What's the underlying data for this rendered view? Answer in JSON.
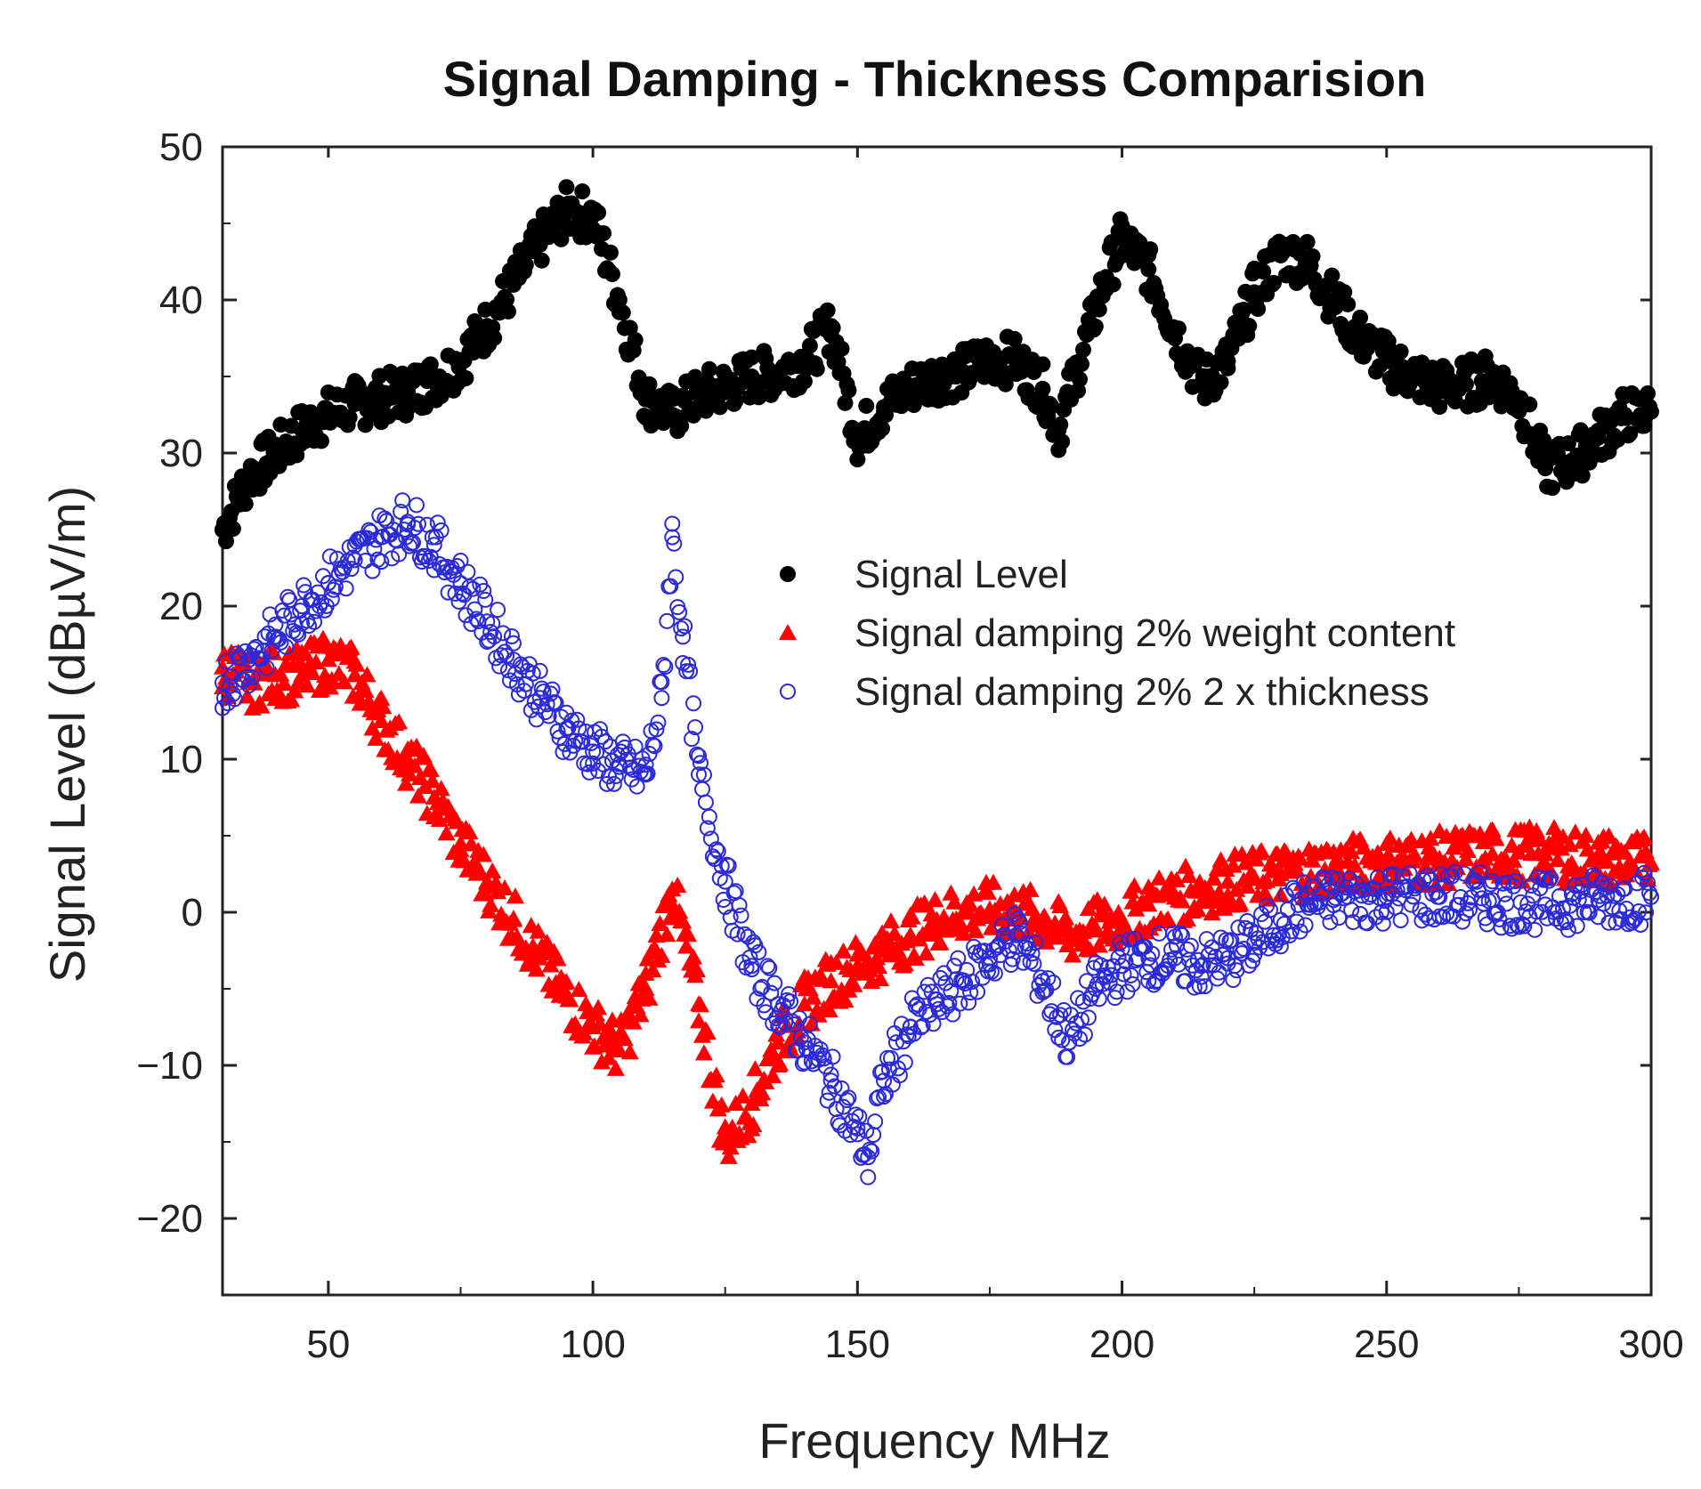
{
  "chart_data": {
    "type": "scatter",
    "title": "Signal Damping - Thickness Comparision",
    "xlabel": "Frequency MHz",
    "ylabel": "Signal Level (dBµV/m)",
    "xlim": [
      30,
      300
    ],
    "ylim": [
      -25,
      50
    ],
    "xticks": [
      50,
      100,
      150,
      200,
      250,
      300
    ],
    "yticks": [
      50,
      40,
      30,
      20,
      10,
      0,
      -10,
      -20
    ],
    "legend_position": "center-right",
    "series": [
      {
        "name": "Signal Level",
        "marker": "filled-circle",
        "color": "#000000",
        "points": [
          [
            30,
            25
          ],
          [
            35,
            28.5
          ],
          [
            40,
            30
          ],
          [
            45,
            31.5
          ],
          [
            50,
            32.5
          ],
          [
            55,
            33.2
          ],
          [
            60,
            33.6
          ],
          [
            65,
            34
          ],
          [
            70,
            34.8
          ],
          [
            75,
            36
          ],
          [
            80,
            38.3
          ],
          [
            85,
            41
          ],
          [
            90,
            43.8
          ],
          [
            95,
            45.8
          ],
          [
            100,
            45.5
          ],
          [
            105,
            40
          ],
          [
            110,
            33.5
          ],
          [
            115,
            32.5
          ],
          [
            120,
            33.8
          ],
          [
            125,
            34.3
          ],
          [
            130,
            35
          ],
          [
            135,
            35.3
          ],
          [
            140,
            36
          ],
          [
            145,
            38.3
          ],
          [
            150,
            31
          ],
          [
            155,
            33
          ],
          [
            160,
            34.3
          ],
          [
            165,
            35
          ],
          [
            170,
            35.3
          ],
          [
            175,
            36.2
          ],
          [
            180,
            36
          ],
          [
            185,
            34.2
          ],
          [
            188,
            31.5
          ],
          [
            192,
            36
          ],
          [
            197,
            41.5
          ],
          [
            200,
            44
          ],
          [
            205,
            42
          ],
          [
            210,
            38
          ],
          [
            215,
            34.5
          ],
          [
            220,
            36
          ],
          [
            225,
            40.5
          ],
          [
            230,
            43
          ],
          [
            235,
            42.5
          ],
          [
            240,
            40
          ],
          [
            245,
            37.5
          ],
          [
            250,
            36
          ],
          [
            255,
            35
          ],
          [
            260,
            34.3
          ],
          [
            265,
            34.5
          ],
          [
            270,
            35
          ],
          [
            275,
            33.5
          ],
          [
            280,
            29
          ],
          [
            285,
            29.5
          ],
          [
            290,
            31
          ],
          [
            295,
            32.5
          ],
          [
            300,
            32.7
          ]
        ]
      },
      {
        "name": "Signal damping 2% weight content",
        "marker": "filled-triangle",
        "color": "#ff0000",
        "points": [
          [
            30,
            16
          ],
          [
            35,
            15
          ],
          [
            40,
            15.5
          ],
          [
            45,
            15.5
          ],
          [
            50,
            16.5
          ],
          [
            55,
            15.5
          ],
          [
            60,
            12.5
          ],
          [
            65,
            10
          ],
          [
            70,
            7.5
          ],
          [
            75,
            4.5
          ],
          [
            80,
            2
          ],
          [
            85,
            -0.5
          ],
          [
            90,
            -3
          ],
          [
            95,
            -5.5
          ],
          [
            100,
            -7.5
          ],
          [
            105,
            -9
          ],
          [
            110,
            -5
          ],
          [
            115,
            1.5
          ],
          [
            120,
            -6
          ],
          [
            125,
            -15
          ],
          [
            130,
            -12.5
          ],
          [
            135,
            -8.5
          ],
          [
            140,
            -6
          ],
          [
            145,
            -4.5
          ],
          [
            150,
            -3.5
          ],
          [
            155,
            -2.5
          ],
          [
            160,
            -1.5
          ],
          [
            165,
            -0.5
          ],
          [
            170,
            0
          ],
          [
            175,
            0.2
          ],
          [
            180,
            0
          ],
          [
            185,
            -0.5
          ],
          [
            190,
            -1.5
          ],
          [
            195,
            -1
          ],
          [
            200,
            -0.5
          ],
          [
            205,
            0.5
          ],
          [
            210,
            1
          ],
          [
            215,
            1.5
          ],
          [
            220,
            2
          ],
          [
            230,
            2.5
          ],
          [
            240,
            3
          ],
          [
            250,
            3.3
          ],
          [
            260,
            3.5
          ],
          [
            270,
            3.8
          ],
          [
            280,
            3.8
          ],
          [
            290,
            3.5
          ],
          [
            300,
            3.2
          ]
        ]
      },
      {
        "name": "Signal damping 2% 2 x thickness",
        "marker": "open-circle",
        "color": "#2a2ad8",
        "points": [
          [
            30,
            15
          ],
          [
            35,
            16.5
          ],
          [
            40,
            18
          ],
          [
            45,
            20
          ],
          [
            50,
            21.5
          ],
          [
            55,
            23
          ],
          [
            60,
            24.5
          ],
          [
            65,
            25.5
          ],
          [
            70,
            24
          ],
          [
            75,
            21.5
          ],
          [
            80,
            19
          ],
          [
            85,
            16.5
          ],
          [
            90,
            14
          ],
          [
            95,
            12
          ],
          [
            100,
            10.5
          ],
          [
            105,
            9.5
          ],
          [
            110,
            9
          ],
          [
            113,
            14
          ],
          [
            115,
            24.5
          ],
          [
            117,
            18
          ],
          [
            120,
            9
          ],
          [
            125,
            2
          ],
          [
            130,
            -3.5
          ],
          [
            135,
            -6
          ],
          [
            140,
            -8.5
          ],
          [
            145,
            -11
          ],
          [
            150,
            -14.5
          ],
          [
            152,
            -16
          ],
          [
            155,
            -11
          ],
          [
            160,
            -7.5
          ],
          [
            165,
            -6
          ],
          [
            170,
            -4.5
          ],
          [
            175,
            -3
          ],
          [
            180,
            -1.5
          ],
          [
            185,
            -4.5
          ],
          [
            190,
            -8.5
          ],
          [
            195,
            -5
          ],
          [
            200,
            -3.5
          ],
          [
            205,
            -3
          ],
          [
            210,
            -3
          ],
          [
            215,
            -3.5
          ],
          [
            220,
            -3
          ],
          [
            225,
            -2
          ],
          [
            230,
            -0.5
          ],
          [
            235,
            0.5
          ],
          [
            240,
            0.8
          ],
          [
            250,
            1
          ],
          [
            260,
            1
          ],
          [
            270,
            0.8
          ],
          [
            280,
            0.5
          ],
          [
            290,
            0.8
          ],
          [
            300,
            1
          ]
        ]
      }
    ]
  }
}
